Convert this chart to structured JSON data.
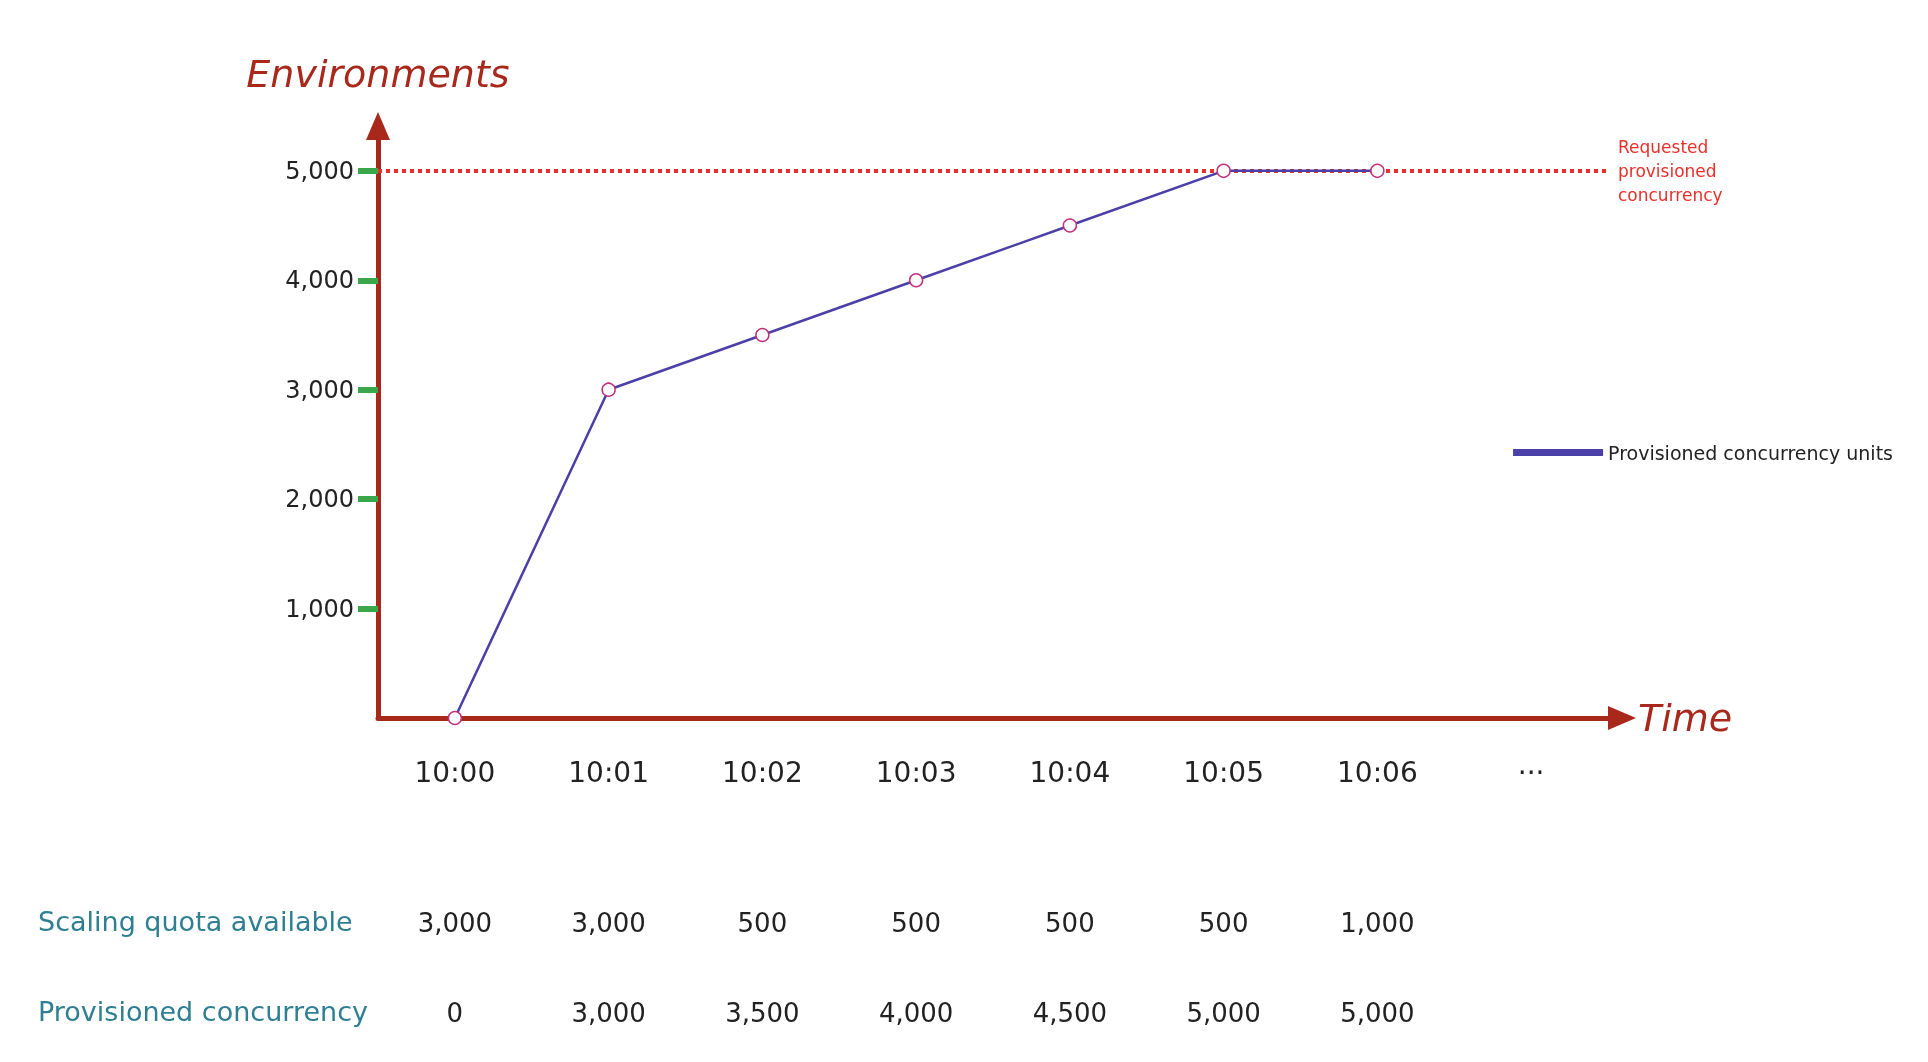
{
  "chart_data": {
    "type": "line",
    "xlabel": "Time",
    "ylabel": "Environments",
    "categories": [
      "10:00",
      "10:01",
      "10:02",
      "10:03",
      "10:04",
      "10:05",
      "10:06",
      "···"
    ],
    "series": [
      {
        "name": "Provisioned concurrency units",
        "color": "#4b3fa8",
        "values": [
          0,
          3000,
          3500,
          4000,
          4500,
          5000,
          5000,
          null
        ],
        "value_labels": [
          "0",
          "3,000",
          "3,500",
          "4,000",
          "4,500",
          "5,000",
          "5,000",
          null
        ]
      }
    ],
    "ylim": [
      0,
      5300
    ],
    "yticks": [
      {
        "value": 1000,
        "label": "1,000"
      },
      {
        "value": 2000,
        "label": "2,000"
      },
      {
        "value": 3000,
        "label": "3,000"
      },
      {
        "value": 4000,
        "label": "4,000"
      },
      {
        "value": 5000,
        "label": "5,000"
      }
    ],
    "ref_lines": [
      {
        "axis": "y",
        "value": 5000,
        "label": "Requested provisioned concurrency",
        "color": "#e8302a",
        "line_style": "dotted"
      }
    ],
    "annotations": [
      "Scaling quota available",
      "Provisioned concurrency",
      "3,000",
      "3,000",
      "500",
      "500",
      "500",
      "500",
      "1,000"
    ],
    "grid": false,
    "legend": "right",
    "marker": "circle",
    "line_style": "solid"
  }
}
